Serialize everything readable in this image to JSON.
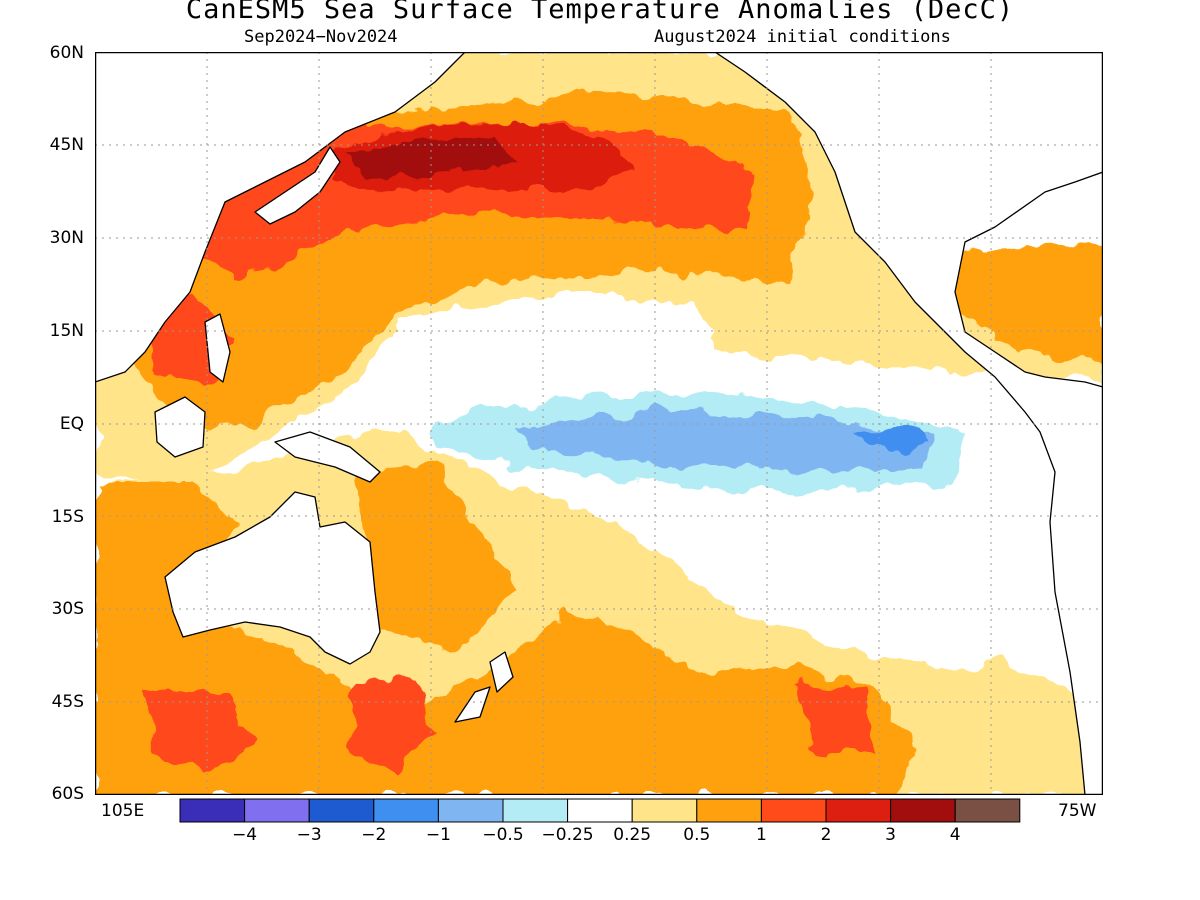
{
  "title": "CanESM5 Sea Surface Temperature Anomalies (DecC)",
  "subtitle_left": "Sep2024−Nov2024",
  "subtitle_right": "August2024 initial conditions",
  "lat_labels": [
    "60N",
    "45N",
    "30N",
    "15N",
    "EQ",
    "15S",
    "30S",
    "45S",
    "60S"
  ],
  "lon_labels": {
    "left": "105E",
    "right": "75W"
  },
  "colorbar": {
    "colors": [
      "#3a2db8",
      "#8070f0",
      "#1f5bd0",
      "#3f8ff0",
      "#7fb6f2",
      "#b3ecf4",
      "#ffffff",
      "#ffe48a",
      "#ffa10f",
      "#ff4a1a",
      "#dc1f10",
      "#a20d0d",
      "#7a5044"
    ],
    "tick_labels": [
      "−4",
      "−3",
      "−2",
      "−1",
      "−0.5",
      "−0.25",
      "0.25",
      "0.5",
      "1",
      "2",
      "3",
      "4"
    ]
  }
}
